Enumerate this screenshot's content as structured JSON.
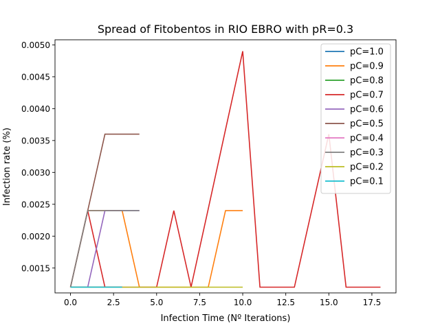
{
  "chart_data": {
    "type": "line",
    "title": "Spread of Fitobentos in RIO EBRO with pR=0.3",
    "xlabel": "Infection Time (Nº Iterations)",
    "ylabel": "Infection rate (%)",
    "xlim": [
      -0.9,
      18.9
    ],
    "ylim": [
      0.00111,
      0.00508
    ],
    "xticks": [
      0,
      2.5,
      5,
      7.5,
      10,
      12.5,
      15,
      17.5
    ],
    "xtick_labels": [
      "0.0",
      "2.5",
      "5.0",
      "7.5",
      "10.0",
      "12.5",
      "15.0",
      "17.5"
    ],
    "yticks": [
      0.0015,
      0.002,
      0.0025,
      0.003,
      0.0035,
      0.004,
      0.0045,
      0.005
    ],
    "ytick_labels": [
      "0.0015",
      "0.0020",
      "0.0025",
      "0.0030",
      "0.0035",
      "0.0040",
      "0.0045",
      "0.0050"
    ],
    "grid": false,
    "legend_position": "top-right",
    "series": [
      {
        "name": "pC=1.0",
        "color": "#1f77b4",
        "x": [
          0,
          1,
          2,
          3
        ],
        "y": [
          0.0012,
          0.0012,
          0.0012,
          0.0012
        ]
      },
      {
        "name": "pC=0.9",
        "color": "#ff7f0e",
        "x": [
          0,
          1,
          2,
          3,
          4,
          5,
          6,
          7,
          8,
          9,
          10
        ],
        "y": [
          0.0012,
          0.0024,
          0.0024,
          0.0024,
          0.0012,
          0.0012,
          0.0012,
          0.0012,
          0.0012,
          0.0024,
          0.0024
        ]
      },
      {
        "name": "pC=0.8",
        "color": "#2ca02c",
        "x": [
          0,
          1,
          2,
          3
        ],
        "y": [
          0.0012,
          0.0012,
          0.0012,
          0.0012
        ]
      },
      {
        "name": "pC=0.7",
        "color": "#d62728",
        "x": [
          0,
          1,
          2,
          3,
          4,
          5,
          6,
          7,
          8,
          9,
          10,
          11,
          12,
          13,
          14,
          15,
          16,
          17,
          18
        ],
        "y": [
          0.0012,
          0.0024,
          0.0012,
          0.0012,
          0.0012,
          0.0012,
          0.0024,
          0.0012,
          0.00243,
          0.00367,
          0.0049,
          0.0012,
          0.0012,
          0.0012,
          0.0024,
          0.0036,
          0.0012,
          0.0012,
          0.0012
        ]
      },
      {
        "name": "pC=0.6",
        "color": "#9467bd",
        "x": [
          0,
          1,
          2,
          3,
          4
        ],
        "y": [
          0.0012,
          0.0012,
          0.0024,
          0.0024,
          0.0024
        ]
      },
      {
        "name": "pC=0.5",
        "color": "#8c564b",
        "x": [
          0,
          1,
          2,
          3,
          4
        ],
        "y": [
          0.0012,
          0.0024,
          0.0036,
          0.0036,
          0.0036
        ]
      },
      {
        "name": "pC=0.4",
        "color": "#e377c2",
        "x": [
          0,
          1,
          2,
          3
        ],
        "y": [
          0.0012,
          0.0012,
          0.0012,
          0.0012
        ]
      },
      {
        "name": "pC=0.3",
        "color": "#7f7f7f",
        "x": [
          0,
          1,
          2,
          3,
          4
        ],
        "y": [
          0.0012,
          0.0024,
          0.0024,
          0.0024,
          0.0024
        ]
      },
      {
        "name": "pC=0.2",
        "color": "#bcbd22",
        "x": [
          0,
          1,
          2,
          3,
          4,
          5,
          6,
          7,
          8,
          9,
          10
        ],
        "y": [
          0.0012,
          0.0012,
          0.0012,
          0.0012,
          0.0012,
          0.0012,
          0.0012,
          0.0012,
          0.0012,
          0.0012,
          0.0012
        ]
      },
      {
        "name": "pC=0.1",
        "color": "#17becf",
        "x": [
          0,
          1,
          2,
          3
        ],
        "y": [
          0.0012,
          0.0012,
          0.0012,
          0.0012
        ]
      }
    ]
  }
}
